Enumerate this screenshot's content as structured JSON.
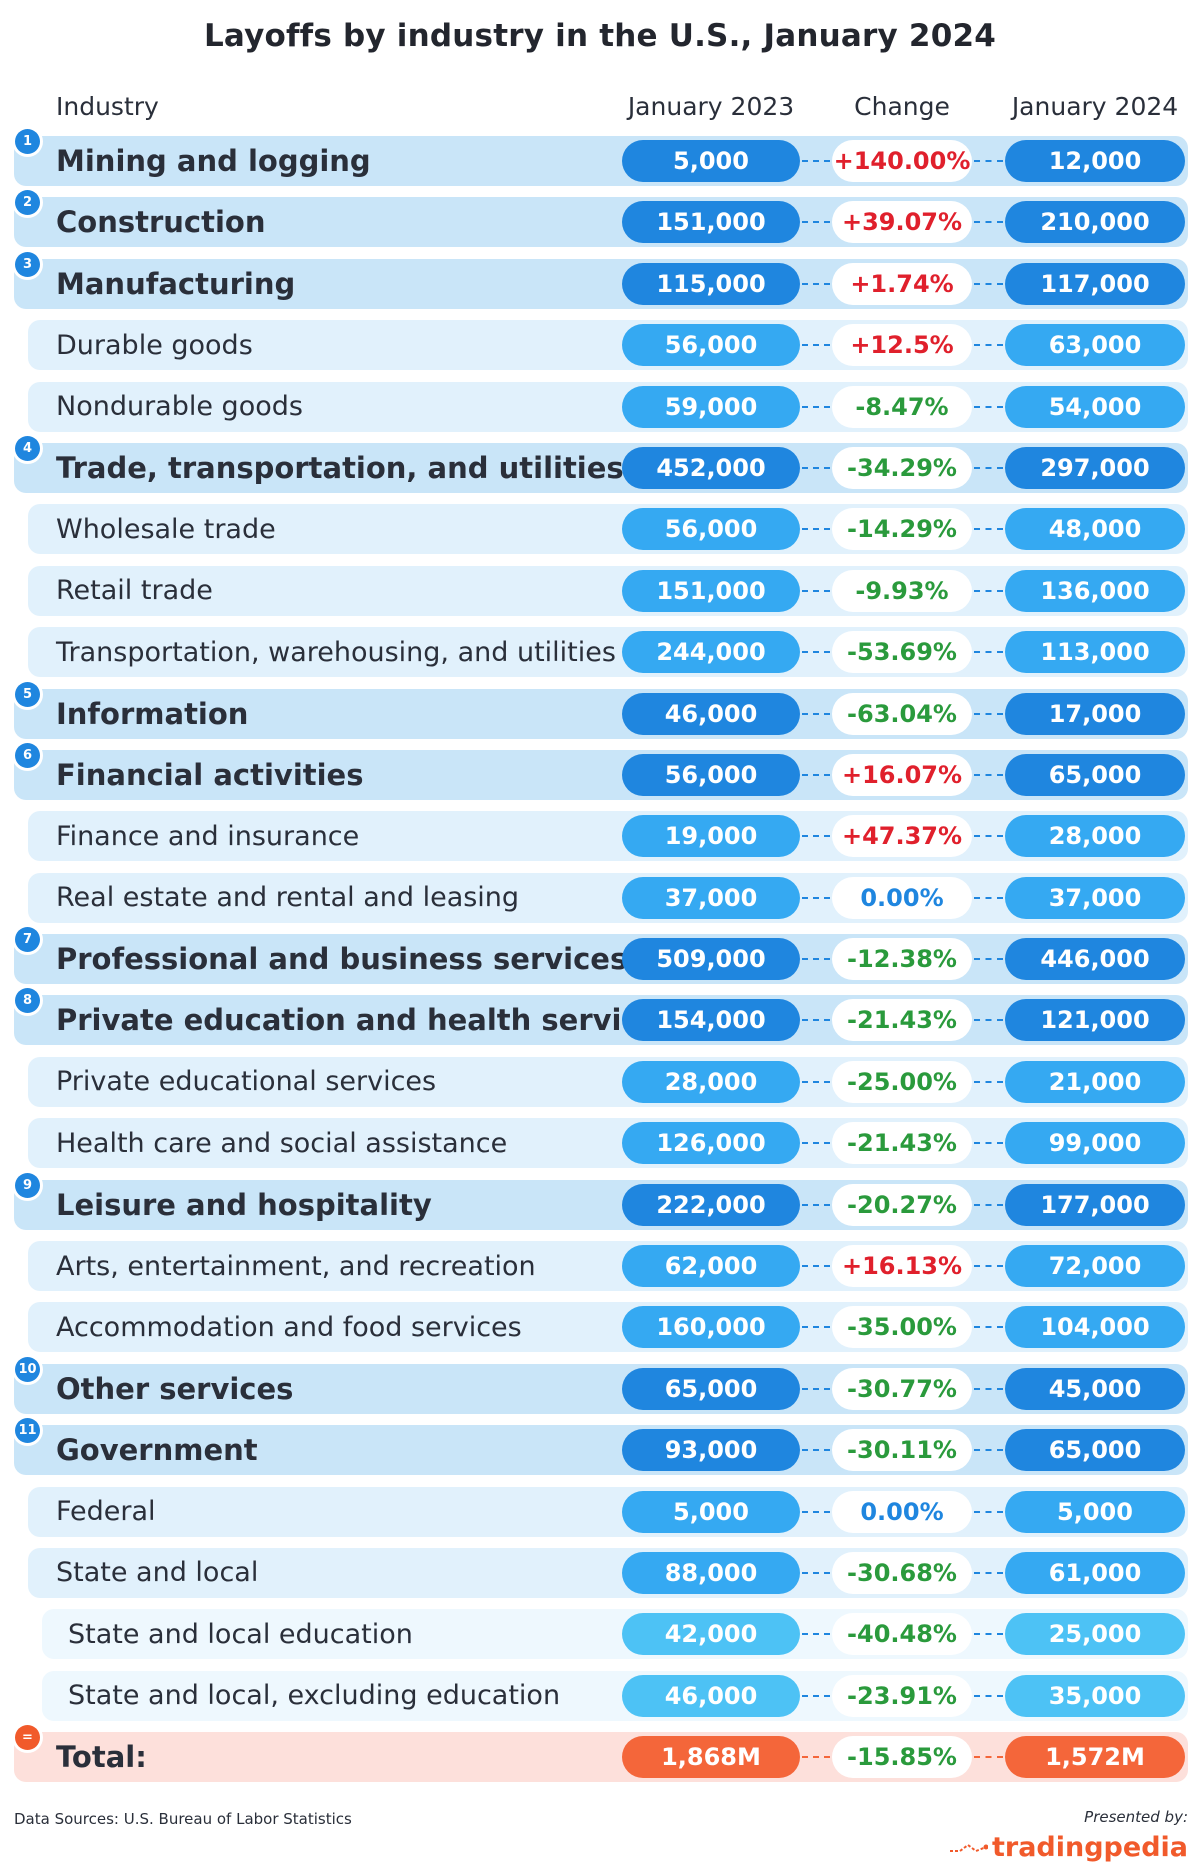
{
  "title": "Layoffs by industry in the U.S., January 2024",
  "headers": {
    "industry": "Industry",
    "jan2023": "January 2023",
    "change": "Change",
    "jan2024": "January 2024"
  },
  "colors": {
    "level0_band": "#c9e5f8",
    "level1_band": "#e1f1fc",
    "level2_band": "#eef8fe",
    "total_band": "#fde0db",
    "level0_pill": "#1f86df",
    "level1_pill": "#35a9f2",
    "level2_pill": "#4dc2f5",
    "total_pill": "#f4663a",
    "increase": "#e0202c",
    "decrease": "#2a9a3c",
    "no_change": "#1f86df"
  },
  "chart_data": {
    "type": "table",
    "title": "Layoffs by industry in the U.S., January 2024",
    "columns": [
      "Industry",
      "January 2023",
      "Change",
      "January 2024"
    ],
    "rows": [
      {
        "badge": "1",
        "level": 0,
        "industry": "Mining and logging",
        "jan2023": "5,000",
        "change": "+140.00%",
        "direction": "up",
        "jan2024": "12,000"
      },
      {
        "badge": "2",
        "level": 0,
        "industry": "Construction",
        "jan2023": "151,000",
        "change": "+39.07%",
        "direction": "up",
        "jan2024": "210,000"
      },
      {
        "badge": "3",
        "level": 0,
        "industry": "Manufacturing",
        "jan2023": "115,000",
        "change": "+1.74%",
        "direction": "up",
        "jan2024": "117,000"
      },
      {
        "badge": "",
        "level": 1,
        "industry": "Durable goods",
        "jan2023": "56,000",
        "change": "+12.5%",
        "direction": "up",
        "jan2024": "63,000"
      },
      {
        "badge": "",
        "level": 1,
        "industry": "Nondurable goods",
        "jan2023": "59,000",
        "change": "-8.47%",
        "direction": "down",
        "jan2024": "54,000"
      },
      {
        "badge": "4",
        "level": 0,
        "industry": "Trade, transportation, and utilities",
        "jan2023": "452,000",
        "change": "-34.29%",
        "direction": "down",
        "jan2024": "297,000"
      },
      {
        "badge": "",
        "level": 1,
        "industry": "Wholesale trade",
        "jan2023": "56,000",
        "change": "-14.29%",
        "direction": "down",
        "jan2024": "48,000"
      },
      {
        "badge": "",
        "level": 1,
        "industry": "Retail trade",
        "jan2023": "151,000",
        "change": "-9.93%",
        "direction": "down",
        "jan2024": "136,000"
      },
      {
        "badge": "",
        "level": 1,
        "industry": "Transportation, warehousing, and utilities",
        "jan2023": "244,000",
        "change": "-53.69%",
        "direction": "down",
        "jan2024": "113,000"
      },
      {
        "badge": "5",
        "level": 0,
        "industry": "Information",
        "jan2023": "46,000",
        "change": "-63.04%",
        "direction": "down",
        "jan2024": "17,000"
      },
      {
        "badge": "6",
        "level": 0,
        "industry": "Financial activities",
        "jan2023": "56,000",
        "change": "+16.07%",
        "direction": "up",
        "jan2024": "65,000"
      },
      {
        "badge": "",
        "level": 1,
        "industry": "Finance and insurance",
        "jan2023": "19,000",
        "change": "+47.37%",
        "direction": "up",
        "jan2024": "28,000"
      },
      {
        "badge": "",
        "level": 1,
        "industry": "Real estate and rental and leasing",
        "jan2023": "37,000",
        "change": "0.00%",
        "direction": "flat",
        "jan2024": "37,000"
      },
      {
        "badge": "7",
        "level": 0,
        "industry": "Professional and business services",
        "jan2023": "509,000",
        "change": "-12.38%",
        "direction": "down",
        "jan2024": "446,000"
      },
      {
        "badge": "8",
        "level": 0,
        "industry": "Private education and health services",
        "jan2023": "154,000",
        "change": "-21.43%",
        "direction": "down",
        "jan2024": "121,000"
      },
      {
        "badge": "",
        "level": 1,
        "industry": "Private educational services",
        "jan2023": "28,000",
        "change": "-25.00%",
        "direction": "down",
        "jan2024": "21,000"
      },
      {
        "badge": "",
        "level": 1,
        "industry": "Health care and social assistance",
        "jan2023": "126,000",
        "change": "-21.43%",
        "direction": "down",
        "jan2024": "99,000"
      },
      {
        "badge": "9",
        "level": 0,
        "industry": "Leisure and hospitality",
        "jan2023": "222,000",
        "change": "-20.27%",
        "direction": "down",
        "jan2024": "177,000"
      },
      {
        "badge": "",
        "level": 1,
        "industry": "Arts, entertainment, and recreation",
        "jan2023": "62,000",
        "change": "+16.13%",
        "direction": "up",
        "jan2024": "72,000"
      },
      {
        "badge": "",
        "level": 1,
        "industry": "Accommodation and food services",
        "jan2023": "160,000",
        "change": "-35.00%",
        "direction": "down",
        "jan2024": "104,000"
      },
      {
        "badge": "10",
        "level": 0,
        "industry": "Other services",
        "jan2023": "65,000",
        "change": "-30.77%",
        "direction": "down",
        "jan2024": "45,000"
      },
      {
        "badge": "11",
        "level": 0,
        "industry": "Government",
        "jan2023": "93,000",
        "change": "-30.11%",
        "direction": "down",
        "jan2024": "65,000"
      },
      {
        "badge": "",
        "level": 1,
        "industry": "Federal",
        "jan2023": "5,000",
        "change": "0.00%",
        "direction": "flat",
        "jan2024": "5,000"
      },
      {
        "badge": "",
        "level": 1,
        "industry": "State and local",
        "jan2023": "88,000",
        "change": "-30.68%",
        "direction": "down",
        "jan2024": "61,000"
      },
      {
        "badge": "",
        "level": 2,
        "industry": "State and local education",
        "jan2023": "42,000",
        "change": "-40.48%",
        "direction": "down",
        "jan2024": "25,000"
      },
      {
        "badge": "",
        "level": 2,
        "industry": "State and local, excluding education",
        "jan2023": "46,000",
        "change": "-23.91%",
        "direction": "down",
        "jan2024": "35,000"
      }
    ],
    "total": {
      "badge": "=",
      "industry": "Total:",
      "jan2023": "1,868M",
      "change": "-15.85%",
      "direction": "down",
      "jan2024": "1,572M"
    }
  },
  "footer": {
    "source": "Data Sources: U.S. Bureau of Labor Statistics",
    "presented_by": "Presented by:",
    "brand": "tradingpedia"
  }
}
